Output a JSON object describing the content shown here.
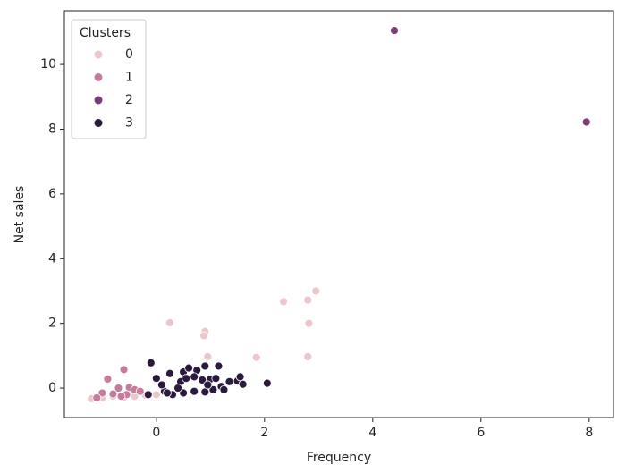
{
  "chart_data": {
    "type": "scatter",
    "x_label": "Frequency",
    "y_label": "Net sales",
    "legend_title": "Clusters",
    "legend_loc": "upper left",
    "xlim": [
      -1.7,
      8.45
    ],
    "ylim": [
      -0.91,
      11.66
    ],
    "xticks": [
      0,
      2,
      4,
      6,
      8
    ],
    "yticks": [
      0,
      2,
      4,
      6,
      8,
      10
    ],
    "series": [
      {
        "name": "0",
        "color": "#ebc6ca",
        "x": [
          0.25,
          0.9,
          0.88,
          0.95,
          1.85,
          2.35,
          2.8,
          2.95,
          2.82,
          2.8,
          -1.2,
          -1.0,
          -0.8,
          -0.6,
          -0.4,
          -0.2,
          0.0
        ],
        "y": [
          2.02,
          1.75,
          1.62,
          0.97,
          0.95,
          2.67,
          2.72,
          3.0,
          2.0,
          0.97,
          -0.33,
          -0.3,
          -0.25,
          -0.28,
          -0.25,
          -0.22,
          -0.2
        ]
      },
      {
        "name": "1",
        "color": "#c67b9c",
        "x": [
          -0.9,
          -0.6,
          -0.7,
          -0.5,
          -0.4,
          -1.0,
          -0.8,
          -0.55,
          -1.1,
          -0.3,
          -0.65
        ],
        "y": [
          0.28,
          0.57,
          0.0,
          0.02,
          -0.05,
          -0.15,
          -0.18,
          -0.2,
          -0.3,
          -0.1,
          -0.25
        ]
      },
      {
        "name": "2",
        "color": "#7b3d78",
        "x": [
          4.4,
          7.95
        ],
        "y": [
          11.05,
          8.22
        ]
      },
      {
        "name": "3",
        "color": "#2c1a3e",
        "x": [
          -0.1,
          0.0,
          0.25,
          0.5,
          0.6,
          0.75,
          0.9,
          1.15,
          0.45,
          0.55,
          0.7,
          0.85,
          1.0,
          1.1,
          1.2,
          1.35,
          1.5,
          1.55,
          1.6,
          2.05,
          0.3,
          0.5,
          0.7,
          0.9,
          1.05,
          0.15,
          -0.15,
          0.1,
          0.2,
          0.95,
          1.25,
          0.4
        ],
        "y": [
          0.78,
          0.3,
          0.45,
          0.5,
          0.62,
          0.55,
          0.68,
          0.68,
          0.2,
          0.3,
          0.35,
          0.25,
          0.28,
          0.3,
          0.05,
          0.2,
          0.22,
          0.35,
          0.12,
          0.15,
          -0.2,
          -0.15,
          -0.1,
          -0.12,
          -0.05,
          -0.1,
          -0.2,
          0.1,
          -0.15,
          0.1,
          -0.05,
          0.0
        ]
      }
    ]
  }
}
